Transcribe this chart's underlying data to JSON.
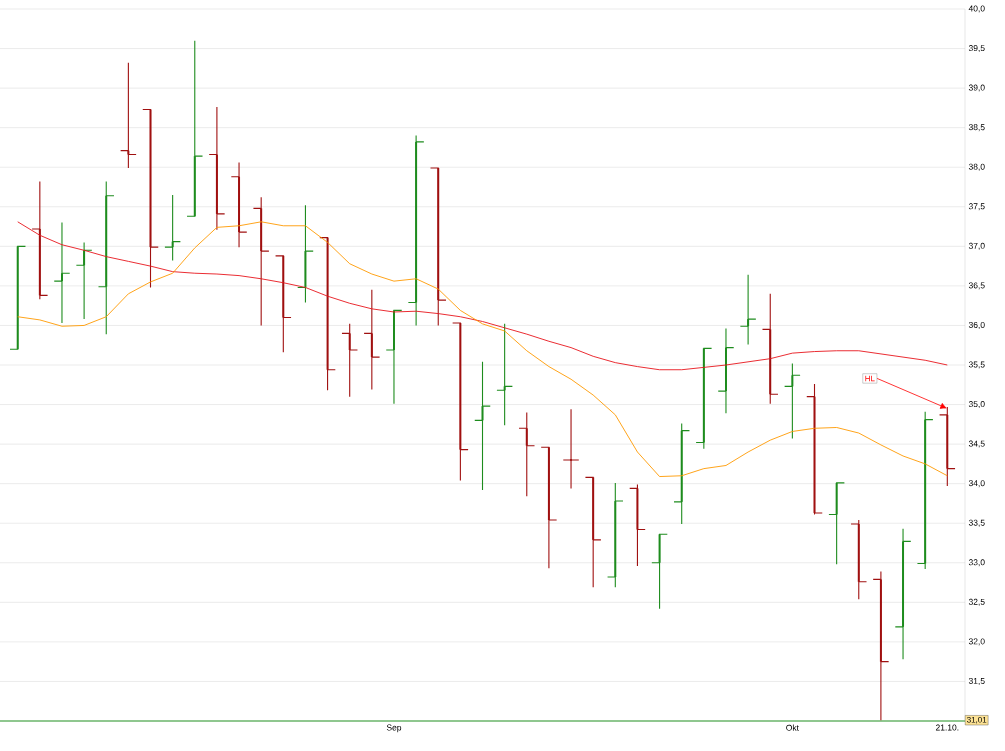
{
  "chart_data": {
    "type": "candlestick",
    "categories": [
      null,
      null,
      null,
      null,
      null,
      null,
      null,
      null,
      null,
      null,
      null,
      null,
      null,
      null,
      null,
      null,
      null,
      "Sep",
      null,
      null,
      null,
      null,
      null,
      null,
      null,
      null,
      null,
      null,
      null,
      null,
      null,
      null,
      null,
      null,
      null,
      "Okt",
      null,
      null,
      null,
      null,
      null,
      null,
      "21.10."
    ],
    "series": [
      {
        "type": "candlestick",
        "colors": [
          "#1e8c1e",
          "#a01010",
          "#1e8c1e",
          "#1e8c1e",
          "#1e8c1e",
          "#a01010",
          "#a01010",
          "#1e8c1e",
          "#1e8c1e",
          "#a01010",
          "#a01010",
          "#a01010",
          "#a01010",
          "#1e8c1e",
          "#a01010",
          "#a01010",
          "#a01010",
          "#1e8c1e",
          "#1e8c1e",
          "#a01010",
          "#a01010",
          "#1e8c1e",
          "#1e8c1e",
          "#a01010",
          "#a01010",
          "#a01010",
          "#a01010",
          "#1e8c1e",
          "#a01010",
          "#1e8c1e",
          "#1e8c1e",
          "#1e8c1e",
          "#1e8c1e",
          "#1e8c1e",
          "#a01010",
          "#1e8c1e",
          "#a01010",
          "#1e8c1e",
          "#a01010",
          "#a01010",
          "#1e8c1e",
          "#1e8c1e",
          "#a01010"
        ],
        "ohlc": [
          [
            35.7,
            37.0,
            35.7,
            37.0
          ],
          [
            37.22,
            37.82,
            36.33,
            36.38
          ],
          [
            36.56,
            37.3,
            36.03,
            36.66
          ],
          [
            36.76,
            37.05,
            36.08,
            36.95
          ],
          [
            36.49,
            37.82,
            35.89,
            37.64
          ],
          [
            38.21,
            39.32,
            37.99,
            38.16
          ],
          [
            38.73,
            38.73,
            36.48,
            36.99
          ],
          [
            36.99,
            37.65,
            36.82,
            37.06
          ],
          [
            37.38,
            39.6,
            37.38,
            38.14
          ],
          [
            38.16,
            38.76,
            37.21,
            37.41
          ],
          [
            37.88,
            38.06,
            36.99,
            37.18
          ],
          [
            37.48,
            37.62,
            36.0,
            36.94
          ],
          [
            36.88,
            36.88,
            35.66,
            36.1
          ],
          [
            36.48,
            37.52,
            36.29,
            36.94
          ],
          [
            37.11,
            37.11,
            35.18,
            35.44
          ],
          [
            35.9,
            36.02,
            35.1,
            35.69
          ],
          [
            35.9,
            36.45,
            35.19,
            35.6
          ],
          [
            35.69,
            36.19,
            35.01,
            36.19
          ],
          [
            36.29,
            38.4,
            36.0,
            38.32
          ],
          [
            37.99,
            37.99,
            36.0,
            36.32
          ],
          [
            36.03,
            36.03,
            34.04,
            34.43
          ],
          [
            34.8,
            35.54,
            33.92,
            34.98
          ],
          [
            35.18,
            36.02,
            34.74,
            35.23
          ],
          [
            34.7,
            34.9,
            33.84,
            34.48
          ],
          [
            34.46,
            34.46,
            32.93,
            33.54
          ],
          [
            34.3,
            34.94,
            33.94,
            34.3
          ],
          [
            34.08,
            34.08,
            32.69,
            33.29
          ],
          [
            32.82,
            34.01,
            32.69,
            33.78
          ],
          [
            33.94,
            33.99,
            32.96,
            33.42
          ],
          [
            33.0,
            33.36,
            32.42,
            33.36
          ],
          [
            33.77,
            34.76,
            33.49,
            34.67
          ],
          [
            34.52,
            35.71,
            34.44,
            35.71
          ],
          [
            35.17,
            35.96,
            34.89,
            35.72
          ],
          [
            35.99,
            36.64,
            35.76,
            36.08
          ],
          [
            35.95,
            36.4,
            35.01,
            35.13
          ],
          [
            35.23,
            35.52,
            34.57,
            35.37
          ],
          [
            35.1,
            35.26,
            33.61,
            33.63
          ],
          [
            33.61,
            34.01,
            32.98,
            34.01
          ],
          [
            33.49,
            33.54,
            32.54,
            32.76
          ],
          [
            32.79,
            32.89,
            31.01,
            31.75
          ],
          [
            32.19,
            33.43,
            31.78,
            33.27
          ],
          [
            32.99,
            34.91,
            32.92,
            34.81
          ],
          [
            34.87,
            34.97,
            33.97,
            34.19
          ]
        ]
      },
      {
        "type": "line",
        "color": "#e8141b",
        "values": [
          37.31,
          37.14,
          37.02,
          36.95,
          36.87,
          36.81,
          36.75,
          36.68,
          36.66,
          36.65,
          36.63,
          36.59,
          36.54,
          36.48,
          36.37,
          36.28,
          36.21,
          36.17,
          36.18,
          36.15,
          36.11,
          36.05,
          35.97,
          35.89,
          35.8,
          35.72,
          35.61,
          35.53,
          35.48,
          35.44,
          35.44,
          35.47,
          35.5,
          35.54,
          35.58,
          35.65,
          35.67,
          35.68,
          35.68,
          35.64,
          35.6,
          35.56,
          35.5
        ]
      },
      {
        "type": "line",
        "color": "#ff9900",
        "values": [
          36.11,
          36.07,
          35.99,
          36.0,
          36.11,
          36.4,
          36.55,
          36.66,
          36.98,
          37.24,
          37.26,
          37.31,
          37.26,
          37.26,
          37.05,
          36.78,
          36.65,
          36.56,
          36.59,
          36.46,
          36.19,
          36.02,
          35.93,
          35.68,
          35.48,
          35.32,
          35.12,
          34.87,
          34.4,
          34.09,
          34.1,
          34.19,
          34.23,
          34.4,
          34.55,
          34.66,
          34.7,
          34.71,
          34.64,
          34.49,
          34.35,
          34.25,
          34.1
        ]
      }
    ],
    "ylim": [
      31,
      40
    ],
    "yticks": [
      {
        "value": 31,
        "label": null
      },
      {
        "value": 31.5,
        "label": "31,5"
      },
      {
        "value": 32,
        "label": "32,0"
      },
      {
        "value": 32.5,
        "label": "32,5"
      },
      {
        "value": 33,
        "label": "33,0"
      },
      {
        "value": 33.5,
        "label": "33,5"
      },
      {
        "value": 34,
        "label": "34,0"
      },
      {
        "value": 34.5,
        "label": "34,5"
      },
      {
        "value": 35,
        "label": "35,0"
      },
      {
        "value": 35.5,
        "label": "35,5"
      },
      {
        "value": 36,
        "label": "36,0"
      },
      {
        "value": 36.5,
        "label": "36,5"
      },
      {
        "value": 37,
        "label": "37,0"
      },
      {
        "value": 37.5,
        "label": "37,5"
      },
      {
        "value": 38,
        "label": "38,0"
      },
      {
        "value": 38.5,
        "label": "38,5"
      },
      {
        "value": 39,
        "label": "39,0"
      },
      {
        "value": 39.5,
        "label": "39,5"
      },
      {
        "value": 40,
        "label": "40,0"
      }
    ],
    "grid": "y",
    "annotations": [
      {
        "text": "HL",
        "x": "21.10.",
        "y": 34.95
      },
      {
        "text": "31,01",
        "y": 31.01
      }
    ]
  }
}
